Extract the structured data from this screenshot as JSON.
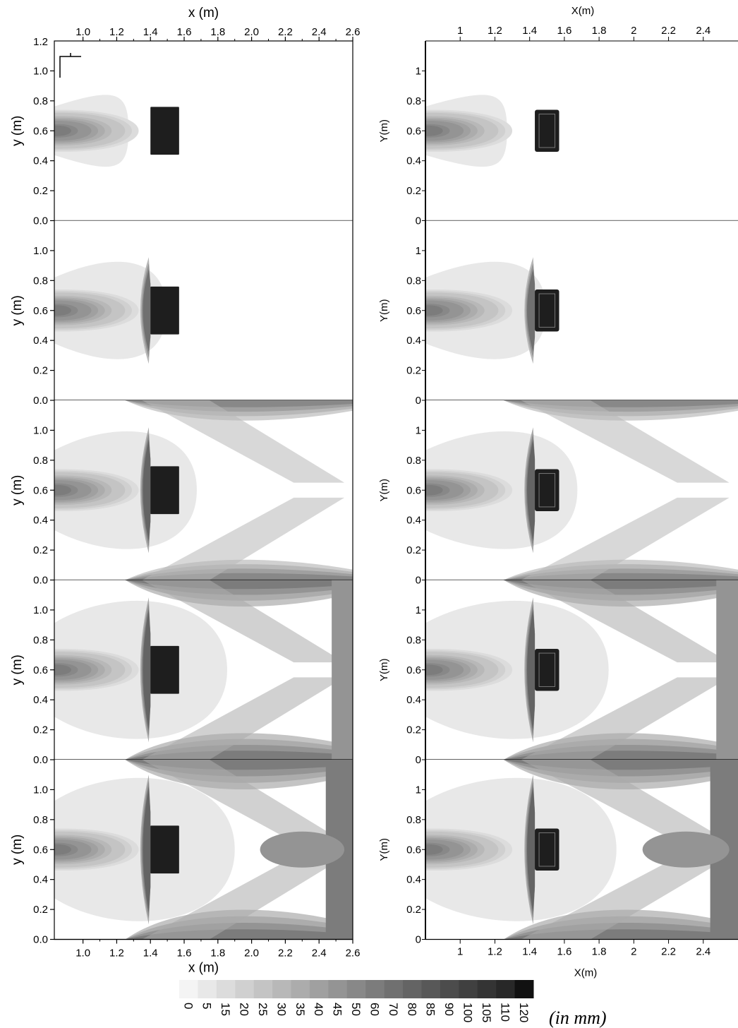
{
  "chart_data": [
    {
      "type": "heatmap",
      "panel_id": "experimental",
      "description_source": "measured",
      "xlabel": "x (m)",
      "ylabel": "y (m)",
      "xlim": [
        0.83,
        2.6
      ],
      "ylim": [
        0.0,
        1.2
      ],
      "xticks": [
        "1.0",
        "1.2",
        "1.4",
        "1.6",
        "1.8",
        "2.0",
        "2.2",
        "2.4",
        "2.6"
      ],
      "xtick_values": [
        1.0,
        1.2,
        1.4,
        1.6,
        1.8,
        2.0,
        2.2,
        2.4,
        2.6
      ],
      "yticks": [
        "0.0",
        "0.2",
        "0.4",
        "0.6",
        "0.8",
        "1.0"
      ],
      "ytick_values": [
        0.0,
        0.2,
        0.4,
        0.6,
        0.8,
        1.0
      ],
      "top_ytick": "1.2",
      "top_ytick_value": 1.2,
      "xaxis_positions": [
        "top",
        "bottom"
      ],
      "n_frames": 5,
      "obstacle": {
        "x0": 1.4,
        "x1": 1.57,
        "y0": 0.44,
        "y1": 0.76
      },
      "value_unit": "(in mm)"
    },
    {
      "type": "heatmap",
      "panel_id": "numerical",
      "description_source": "simulated",
      "xlabel": "X(m)",
      "ylabel": "Y(m)",
      "xlim": [
        0.8,
        2.6
      ],
      "ylim": [
        0.0,
        1.2
      ],
      "xticks": [
        "1",
        "1.2",
        "1.4",
        "1.6",
        "1.8",
        "2",
        "2.2",
        "2.4"
      ],
      "xtick_values": [
        1.0,
        1.2,
        1.4,
        1.6,
        1.8,
        2.0,
        2.2,
        2.4
      ],
      "yticks": [
        "0",
        "0.2",
        "0.4",
        "0.6",
        "0.8",
        "1"
      ],
      "ytick_values": [
        0.0,
        0.2,
        0.4,
        0.6,
        0.8,
        1.0
      ],
      "xaxis_positions": [
        "top",
        "bottom"
      ],
      "n_frames": 5,
      "obstacle": {
        "x0": 1.43,
        "x1": 1.57,
        "y0": 0.46,
        "y1": 0.74
      },
      "value_unit": "(in mm)"
    }
  ],
  "colorbar": {
    "levels": [
      "0",
      "5",
      "15",
      "20",
      "25",
      "30",
      "35",
      "40",
      "45",
      "50",
      "60",
      "70",
      "80",
      "85",
      "90",
      "100",
      "105",
      "110",
      "120"
    ],
    "level_values": [
      0,
      5,
      15,
      20,
      25,
      30,
      35,
      40,
      45,
      50,
      60,
      70,
      80,
      85,
      90,
      100,
      105,
      110,
      120
    ],
    "colors": [
      "#f4f4f4",
      "#e8e8e8",
      "#dcdcdc",
      "#d0d0d0",
      "#c4c4c4",
      "#b8b8b8",
      "#acacac",
      "#a0a0a0",
      "#949494",
      "#888888",
      "#7c7c7c",
      "#707070",
      "#646464",
      "#585858",
      "#4c4c4c",
      "#404040",
      "#343434",
      "#282828",
      "#111111"
    ],
    "unit": "(in mm)"
  },
  "frames": [
    {
      "wave_reach": 0.3,
      "sidewall_wave": 0.0,
      "far_wall": 0.0
    },
    {
      "wave_reach": 0.55,
      "sidewall_wave": 0.0,
      "far_wall": 0.0
    },
    {
      "wave_reach": 0.75,
      "sidewall_wave": 0.55,
      "far_wall": 0.0
    },
    {
      "wave_reach": 0.95,
      "sidewall_wave": 0.85,
      "far_wall": 0.35
    },
    {
      "wave_reach": 1.0,
      "sidewall_wave": 1.0,
      "far_wall": 0.7
    }
  ]
}
